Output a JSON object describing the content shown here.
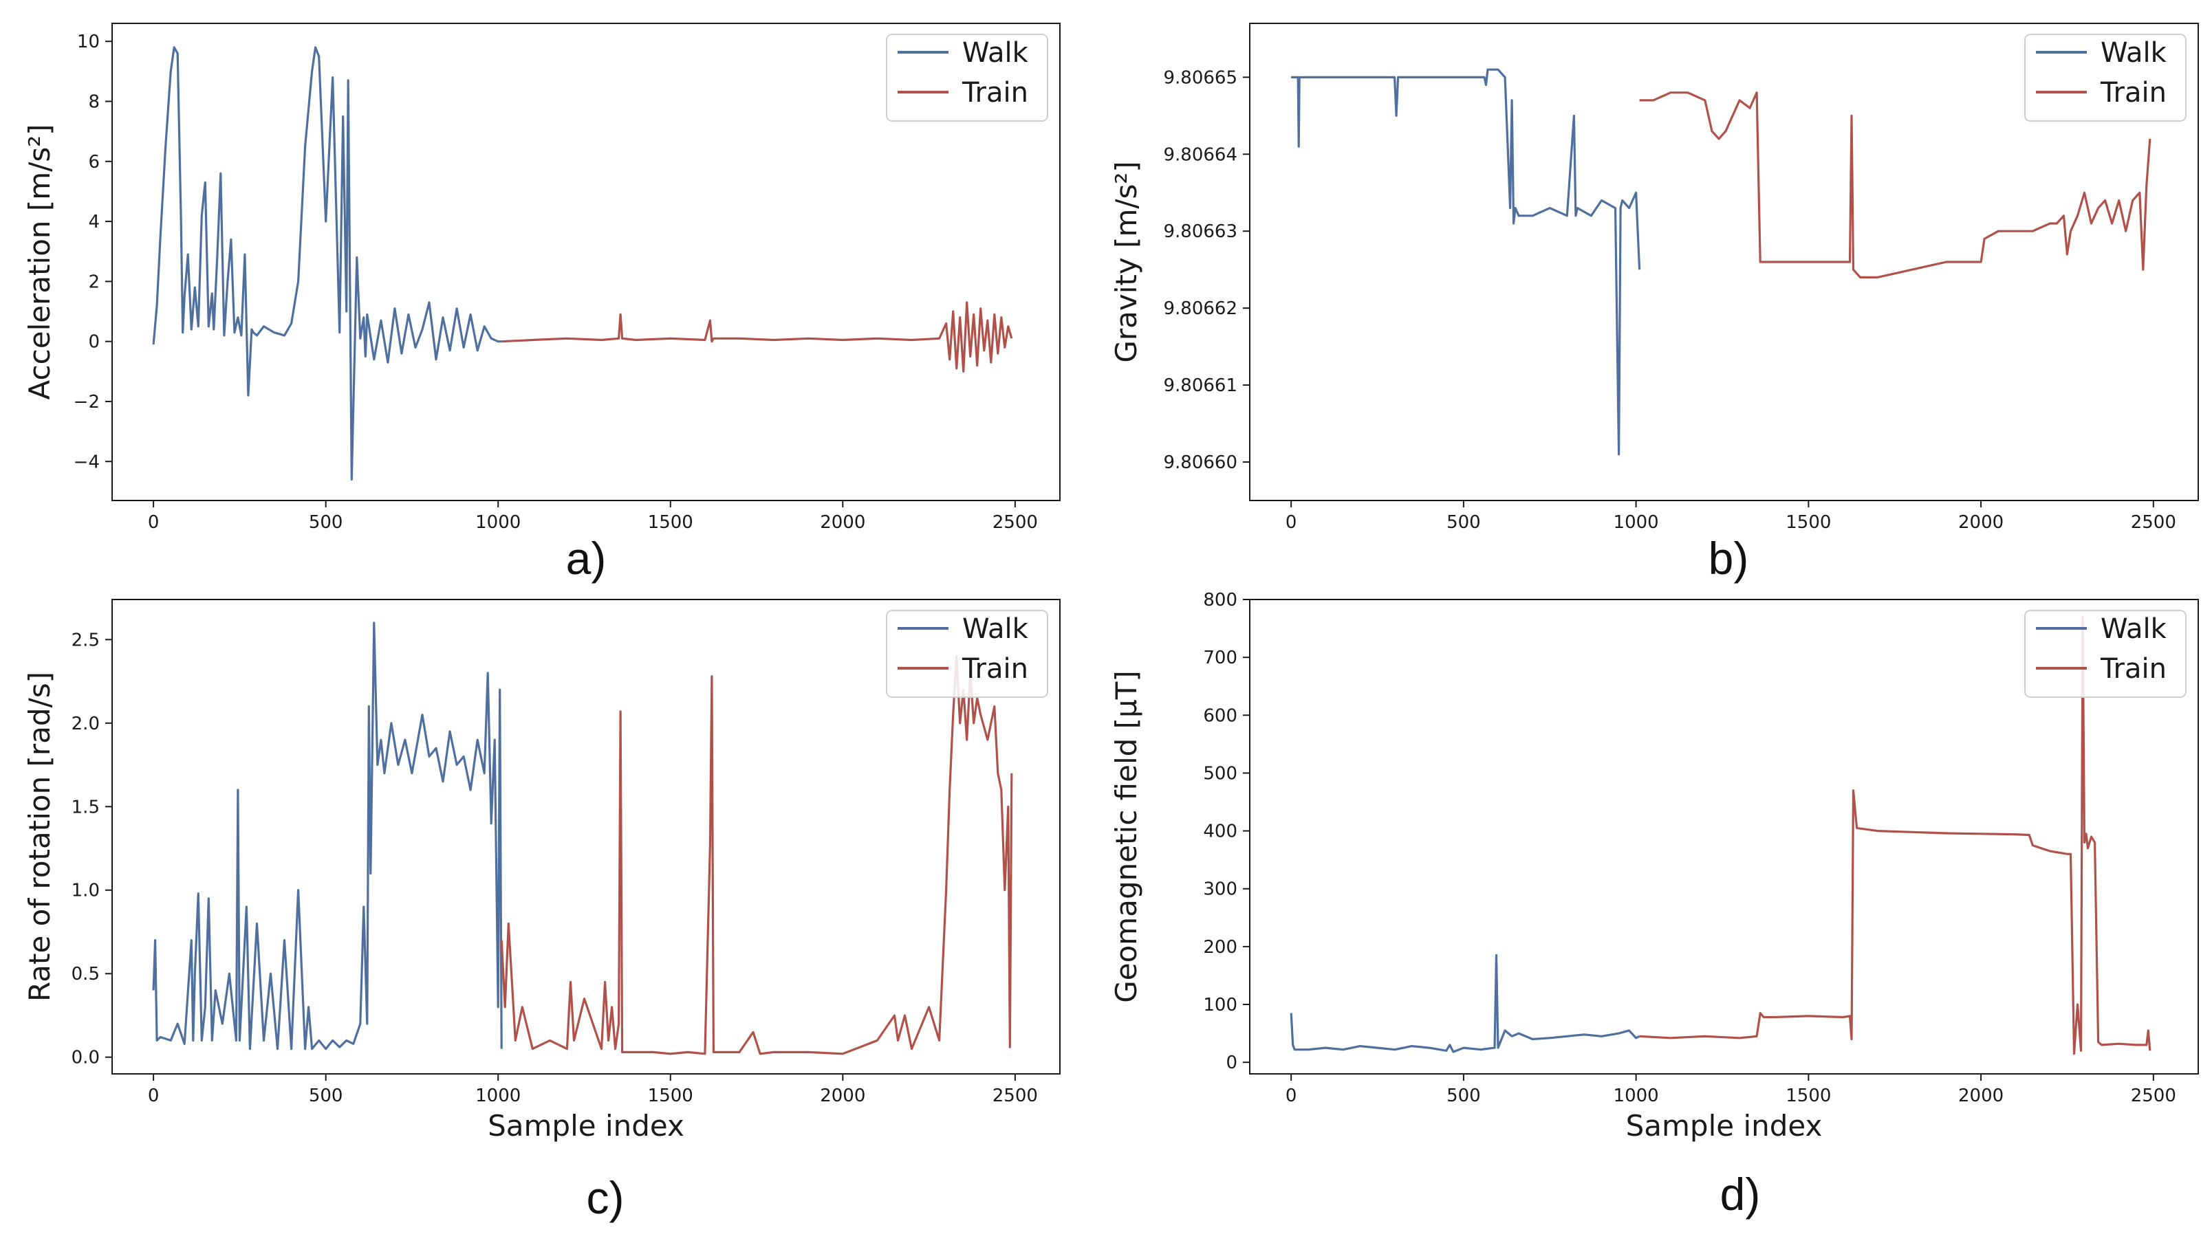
{
  "figure": {
    "xlabel_text": "Sample index",
    "legend": [
      "Walk",
      "Train"
    ],
    "colors": {
      "walk": "#4f6f9f",
      "train": "#b0524a"
    }
  },
  "chart_data": [
    {
      "type": "line",
      "panel_label": "a)",
      "xlabel": "",
      "ylabel": "Acceleration [m/s²]",
      "xlim": [
        -120,
        2630
      ],
      "ylim": [
        -5.3,
        10.6
      ],
      "xticks": [
        "0",
        "500",
        "1000",
        "1500",
        "2000",
        "2500"
      ],
      "yticks": [
        "−4",
        "−2",
        "0",
        "2",
        "4",
        "6",
        "8",
        "10"
      ],
      "legend": [
        "Walk",
        "Train"
      ],
      "legend_loc": "top-right",
      "series": [
        {
          "name": "Walk",
          "color": "#4f6f9f",
          "x": [
            0,
            10,
            20,
            35,
            50,
            60,
            70,
            80,
            85,
            90,
            100,
            110,
            120,
            130,
            140,
            150,
            160,
            170,
            175,
            185,
            195,
            205,
            215,
            225,
            235,
            245,
            255,
            265,
            275,
            285,
            290,
            300,
            320,
            350,
            380,
            400,
            420,
            440,
            460,
            470,
            480,
            500,
            520,
            540,
            550,
            560,
            565,
            575,
            590,
            600,
            610,
            615,
            620,
            640,
            660,
            680,
            700,
            720,
            740,
            760,
            780,
            800,
            820,
            840,
            860,
            880,
            900,
            920,
            940,
            960,
            980,
            1000,
            1010
          ],
          "y": [
            -0.1,
            1.2,
            3.5,
            6.5,
            9.0,
            9.8,
            9.6,
            4.0,
            0.3,
            1.5,
            2.9,
            0.4,
            1.8,
            0.5,
            4.2,
            5.3,
            0.5,
            1.6,
            0.4,
            2.8,
            5.6,
            0.2,
            2.0,
            3.4,
            0.3,
            0.8,
            0.2,
            2.9,
            -1.8,
            0.4,
            0.3,
            0.2,
            0.5,
            0.3,
            0.2,
            0.6,
            2.0,
            6.5,
            9.0,
            9.8,
            9.5,
            4.0,
            8.8,
            0.3,
            7.5,
            1.0,
            8.7,
            -4.6,
            2.8,
            0.1,
            0.8,
            -0.5,
            0.9,
            -0.6,
            0.7,
            -0.7,
            1.1,
            -0.4,
            0.9,
            -0.2,
            0.4,
            1.3,
            -0.6,
            0.8,
            -0.3,
            1.1,
            -0.2,
            0.9,
            -0.3,
            0.5,
            0.1,
            0.0,
            0.0
          ]
        },
        {
          "name": "Train",
          "color": "#b0524a",
          "x": [
            1010,
            1100,
            1200,
            1300,
            1350,
            1355,
            1360,
            1400,
            1500,
            1600,
            1615,
            1620,
            1625,
            1700,
            1800,
            1900,
            2000,
            2100,
            2200,
            2280,
            2300,
            2310,
            2320,
            2330,
            2340,
            2350,
            2360,
            2370,
            2380,
            2390,
            2400,
            2410,
            2420,
            2430,
            2440,
            2450,
            2460,
            2470,
            2480,
            2490
          ],
          "y": [
            0.0,
            0.05,
            0.1,
            0.05,
            0.1,
            0.9,
            0.1,
            0.05,
            0.1,
            0.05,
            0.7,
            0.0,
            0.1,
            0.1,
            0.05,
            0.1,
            0.05,
            0.1,
            0.05,
            0.1,
            0.6,
            -0.6,
            1.0,
            -0.9,
            0.8,
            -1.0,
            1.3,
            -0.5,
            0.9,
            -0.8,
            1.1,
            -0.3,
            0.7,
            -0.7,
            0.9,
            -0.4,
            0.8,
            -0.2,
            0.5,
            0.1
          ]
        }
      ]
    },
    {
      "type": "line",
      "panel_label": "b)",
      "xlabel": "",
      "ylabel": "Gravity [m/s²]",
      "xlim": [
        -120,
        2630
      ],
      "ylim": [
        9.806595,
        9.806657
      ],
      "xticks": [
        "0",
        "500",
        "1000",
        "1500",
        "2000",
        "2500"
      ],
      "yticks": [
        "9.80660",
        "9.80661",
        "9.80662",
        "9.80663",
        "9.80664",
        "9.80665"
      ],
      "legend": [
        "Walk",
        "Train"
      ],
      "legend_loc": "top-right",
      "series": [
        {
          "name": "Walk",
          "color": "#4f6f9f",
          "x": [
            0,
            20,
            22,
            24,
            60,
            300,
            305,
            310,
            560,
            565,
            570,
            600,
            620,
            635,
            640,
            645,
            650,
            660,
            700,
            750,
            800,
            820,
            825,
            830,
            870,
            900,
            940,
            950,
            955,
            960,
            980,
            1000,
            1010
          ],
          "y": [
            9.80665,
            9.80665,
            9.806641,
            9.80665,
            9.80665,
            9.80665,
            9.806645,
            9.80665,
            9.80665,
            9.806649,
            9.806651,
            9.806651,
            9.80665,
            9.806633,
            9.806647,
            9.806631,
            9.806633,
            9.806632,
            9.806632,
            9.806633,
            9.806632,
            9.806645,
            9.806632,
            9.806633,
            9.806632,
            9.806634,
            9.806633,
            9.806601,
            9.806633,
            9.806634,
            9.806633,
            9.806635,
            9.806625
          ]
        },
        {
          "name": "Train",
          "color": "#b0524a",
          "x": [
            1010,
            1020,
            1050,
            1100,
            1150,
            1200,
            1220,
            1240,
            1260,
            1300,
            1330,
            1350,
            1360,
            1400,
            1500,
            1600,
            1620,
            1625,
            1630,
            1650,
            1700,
            1800,
            1900,
            2000,
            2010,
            2050,
            2100,
            2150,
            2200,
            2220,
            2240,
            2250,
            2260,
            2280,
            2300,
            2320,
            2340,
            2360,
            2380,
            2400,
            2420,
            2440,
            2460,
            2470,
            2480,
            2490
          ],
          "y": [
            9.806647,
            9.806647,
            9.806647,
            9.806648,
            9.806648,
            9.806647,
            9.806643,
            9.806642,
            9.806643,
            9.806647,
            9.806646,
            9.806648,
            9.806626,
            9.806626,
            9.806626,
            9.806626,
            9.806626,
            9.806645,
            9.806625,
            9.806624,
            9.806624,
            9.806625,
            9.806626,
            9.806626,
            9.806629,
            9.80663,
            9.80663,
            9.80663,
            9.806631,
            9.806631,
            9.806632,
            9.806627,
            9.80663,
            9.806632,
            9.806635,
            9.806631,
            9.806633,
            9.806634,
            9.806631,
            9.806634,
            9.80663,
            9.806634,
            9.806635,
            9.806625,
            9.806636,
            9.806642
          ]
        }
      ]
    },
    {
      "type": "line",
      "panel_label": "c)",
      "xlabel": "Sample index",
      "ylabel": "Rate of rotation [rad/s]",
      "xlim": [
        -120,
        2630
      ],
      "ylim": [
        -0.1,
        2.74
      ],
      "xticks": [
        "0",
        "500",
        "1000",
        "1500",
        "2000",
        "2500"
      ],
      "yticks": [
        "0.0",
        "0.5",
        "1.0",
        "1.5",
        "2.0",
        "2.5"
      ],
      "legend": [
        "Walk",
        "Train"
      ],
      "legend_loc": "top-right",
      "series": [
        {
          "name": "Walk",
          "color": "#4f6f9f",
          "x": [
            0,
            5,
            10,
            20,
            50,
            70,
            90,
            110,
            115,
            120,
            130,
            140,
            150,
            160,
            170,
            180,
            200,
            220,
            240,
            245,
            250,
            270,
            280,
            300,
            320,
            340,
            360,
            380,
            400,
            420,
            440,
            450,
            460,
            480,
            500,
            520,
            540,
            560,
            580,
            600,
            610,
            620,
            625,
            630,
            640,
            650,
            660,
            670,
            690,
            710,
            730,
            750,
            780,
            800,
            820,
            840,
            860,
            880,
            900,
            920,
            940,
            960,
            970,
            980,
            990,
            1000,
            1005,
            1010
          ],
          "y": [
            0.4,
            0.7,
            0.1,
            0.12,
            0.1,
            0.2,
            0.08,
            0.7,
            0.1,
            0.5,
            0.98,
            0.1,
            0.3,
            0.95,
            0.1,
            0.4,
            0.2,
            0.5,
            0.1,
            1.6,
            0.1,
            0.9,
            0.05,
            0.8,
            0.1,
            0.5,
            0.05,
            0.7,
            0.05,
            1.0,
            0.05,
            0.3,
            0.05,
            0.1,
            0.05,
            0.1,
            0.06,
            0.1,
            0.08,
            0.2,
            0.9,
            0.2,
            2.1,
            1.1,
            2.6,
            1.75,
            1.9,
            1.7,
            2.0,
            1.75,
            1.9,
            1.7,
            2.05,
            1.8,
            1.85,
            1.65,
            1.95,
            1.75,
            1.8,
            1.6,
            1.9,
            1.7,
            2.3,
            1.4,
            1.9,
            0.3,
            2.2,
            0.05
          ]
        },
        {
          "name": "Train",
          "color": "#b0524a",
          "x": [
            1010,
            1020,
            1030,
            1050,
            1070,
            1100,
            1150,
            1200,
            1210,
            1220,
            1250,
            1300,
            1310,
            1320,
            1330,
            1340,
            1350,
            1355,
            1360,
            1400,
            1450,
            1500,
            1550,
            1600,
            1615,
            1620,
            1625,
            1630,
            1700,
            1740,
            1760,
            1800,
            1900,
            2000,
            2100,
            2150,
            2160,
            2180,
            2200,
            2250,
            2280,
            2300,
            2310,
            2320,
            2330,
            2340,
            2350,
            2360,
            2370,
            2380,
            2390,
            2400,
            2420,
            2440,
            2450,
            2460,
            2470,
            2480,
            2485,
            2490
          ],
          "y": [
            0.7,
            0.3,
            0.8,
            0.1,
            0.3,
            0.05,
            0.1,
            0.05,
            0.45,
            0.1,
            0.35,
            0.05,
            0.45,
            0.1,
            0.3,
            0.05,
            0.2,
            2.07,
            0.03,
            0.03,
            0.03,
            0.02,
            0.03,
            0.02,
            1.27,
            2.28,
            0.03,
            0.03,
            0.03,
            0.15,
            0.02,
            0.03,
            0.03,
            0.02,
            0.1,
            0.25,
            0.1,
            0.25,
            0.05,
            0.3,
            0.1,
            1.0,
            1.6,
            2.05,
            2.4,
            2.0,
            2.2,
            1.9,
            2.3,
            2.0,
            2.15,
            2.05,
            1.9,
            2.1,
            1.7,
            1.6,
            1.0,
            1.5,
            0.06,
            1.7
          ]
        }
      ]
    },
    {
      "type": "line",
      "panel_label": "d)",
      "xlabel": "Sample index",
      "ylabel": "Geomagnetic field [μT]",
      "xlim": [
        -120,
        2630
      ],
      "ylim": [
        -20,
        800
      ],
      "xticks": [
        "0",
        "500",
        "1000",
        "1500",
        "2000",
        "2500"
      ],
      "yticks": [
        "0",
        "100",
        "200",
        "300",
        "400",
        "500",
        "600",
        "700",
        "800"
      ],
      "legend": [
        "Walk",
        "Train"
      ],
      "legend_loc": "top-right",
      "series": [
        {
          "name": "Walk",
          "color": "#4f6f9f",
          "x": [
            0,
            5,
            10,
            50,
            100,
            150,
            200,
            250,
            300,
            350,
            400,
            450,
            460,
            470,
            500,
            550,
            590,
            595,
            600,
            620,
            640,
            660,
            700,
            750,
            800,
            850,
            900,
            950,
            980,
            1000,
            1010
          ],
          "y": [
            85,
            30,
            22,
            22,
            25,
            22,
            28,
            25,
            22,
            28,
            25,
            20,
            30,
            18,
            25,
            22,
            25,
            185,
            25,
            55,
            45,
            50,
            40,
            42,
            45,
            48,
            45,
            50,
            55,
            42,
            45
          ]
        },
        {
          "name": "Train",
          "color": "#b0524a",
          "x": [
            1010,
            1100,
            1200,
            1300,
            1350,
            1360,
            1370,
            1400,
            1500,
            1600,
            1620,
            1625,
            1630,
            1640,
            1700,
            1800,
            1900,
            2000,
            2100,
            2140,
            2150,
            2200,
            2250,
            2260,
            2270,
            2280,
            2290,
            2295,
            2300,
            2305,
            2310,
            2320,
            2330,
            2340,
            2350,
            2400,
            2450,
            2480,
            2485,
            2490
          ],
          "y": [
            45,
            42,
            45,
            42,
            45,
            85,
            78,
            78,
            80,
            78,
            80,
            40,
            470,
            405,
            400,
            398,
            396,
            395,
            394,
            393,
            375,
            365,
            360,
            360,
            15,
            100,
            20,
            770,
            380,
            395,
            370,
            390,
            380,
            35,
            30,
            32,
            30,
            30,
            55,
            20
          ]
        }
      ]
    }
  ]
}
